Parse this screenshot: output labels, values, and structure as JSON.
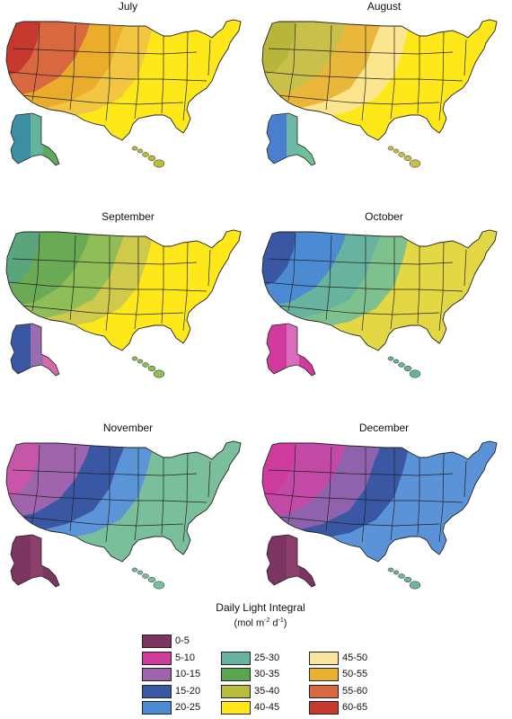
{
  "panels": [
    {
      "title": "July",
      "bands": [
        "#ffe81a",
        "#f2c641",
        "#e9ac2b",
        "#d8683f",
        "#c7382f"
      ],
      "alaska": [
        "#3c8fa3",
        "#62b59c",
        "#5fa85e"
      ],
      "hawaii": "#b9bd3d"
    },
    {
      "title": "August",
      "bands": [
        "#ffe81a",
        "#fbe58f",
        "#e9b73a",
        "#c9c04c",
        "#b7b53a"
      ],
      "alaska": [
        "#4a7fd0",
        "#6fb7a6",
        "#6fc19a"
      ],
      "hawaii": "#c9c04c"
    },
    {
      "title": "September",
      "bands": [
        "#ffe81a",
        "#cfc94c",
        "#8fbd57",
        "#6aaa54",
        "#5ba57d"
      ],
      "alaska": [
        "#3a57a3",
        "#9a6db0",
        "#d66aa8"
      ],
      "hawaii": "#8fbd57"
    },
    {
      "title": "October",
      "bands": [
        "#e3d743",
        "#7fc08f",
        "#68b39f",
        "#4c8bd4",
        "#3a57a3"
      ],
      "alaska": [
        "#d23a9e",
        "#d96dbb",
        "#d23a9e"
      ],
      "hawaii": "#68b39f"
    },
    {
      "title": "November",
      "bands": [
        "#79bf9c",
        "#5c94d8",
        "#3a57a3",
        "#a064ad",
        "#c856a8"
      ],
      "alaska": [
        "#7b3560",
        "#8b3f6a",
        "#7b3560"
      ],
      "hawaii": "#79bf9c"
    },
    {
      "title": "December",
      "bands": [
        "#5b93d8",
        "#3a57a3",
        "#8e62ac",
        "#c24aa6",
        "#cf3b9b"
      ],
      "alaska": [
        "#7b3560",
        "#8b3f6a",
        "#7b3560"
      ],
      "hawaii": "#6fb3a0"
    }
  ],
  "legend": {
    "title": "Daily Light Integral",
    "unit_prefix": "(mol m",
    "unit_exp1": "-2",
    "unit_mid": " d",
    "unit_exp2": "-1",
    "unit_suffix": ")",
    "items": [
      {
        "label": "0-5",
        "color": "#7b3560"
      },
      {
        "label": "5-10",
        "color": "#cf3b9b"
      },
      {
        "label": "10-15",
        "color": "#a064ad"
      },
      {
        "label": "15-20",
        "color": "#3a57a3"
      },
      {
        "label": "20-25",
        "color": "#4c8bd4"
      },
      {
        "label": "25-30",
        "color": "#68b39f"
      },
      {
        "label": "30-35",
        "color": "#5aa54f"
      },
      {
        "label": "35-40",
        "color": "#b9bd3d"
      },
      {
        "label": "40-45",
        "color": "#ffe81a"
      },
      {
        "label": "45-50",
        "color": "#fbe6a0"
      },
      {
        "label": "50-55",
        "color": "#e9b22e"
      },
      {
        "label": "55-60",
        "color": "#d8683f"
      },
      {
        "label": "60-65",
        "color": "#c7382f"
      }
    ]
  }
}
